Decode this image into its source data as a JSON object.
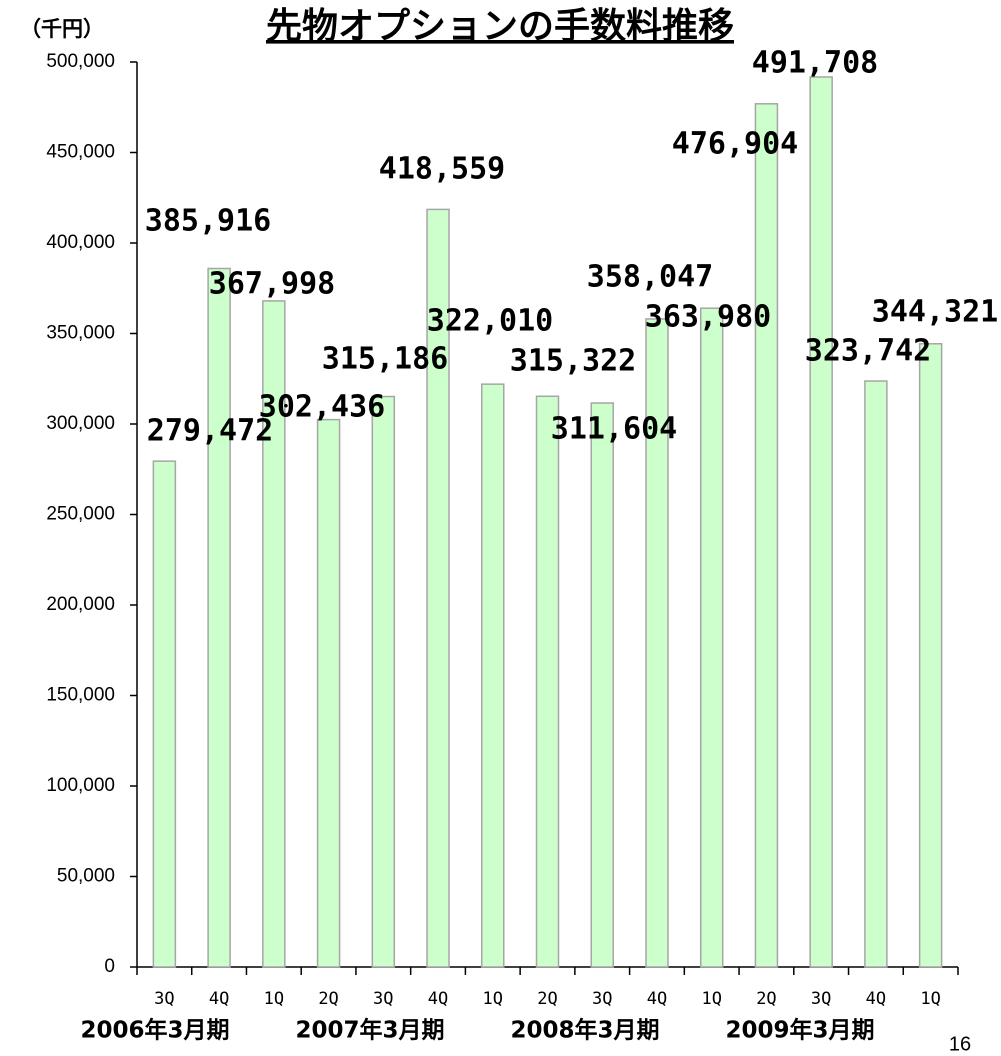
{
  "chart_data": {
    "type": "bar",
    "title": "先物オプションの手数料推移",
    "y_unit": "（千円）",
    "categories": [
      "3Q",
      "4Q",
      "1Q",
      "2Q",
      "3Q",
      "4Q",
      "1Q",
      "2Q",
      "3Q",
      "4Q",
      "1Q",
      "2Q",
      "3Q",
      "4Q",
      "1Q"
    ],
    "groups": [
      "2006年3月期",
      "2007年3月期",
      "2008年3月期",
      "2009年3月期"
    ],
    "values": [
      279472,
      385916,
      367998,
      302436,
      315186,
      418559,
      322010,
      315322,
      311604,
      358047,
      363980,
      476904,
      491708,
      323742,
      344321
    ],
    "value_labels": [
      "279,472",
      "385,916",
      "367,998",
      "302,436",
      "315,186",
      "418,559",
      "322,010",
      "315,322",
      "311,604",
      "358,047",
      "363,980",
      "476,904",
      "491,708",
      "323,742",
      "344,321"
    ],
    "color": "#ccffcc",
    "edge_color": "#a6a6a6",
    "ylim": [
      0,
      500000
    ],
    "yticks": [
      0,
      {
        "value": 50000,
        "label": "50,000"
      },
      {
        "value": 100000,
        "label": "100,000"
      },
      {
        "value": 150000,
        "label": "150,000"
      },
      {
        "value": 200000,
        "label": "200,000"
      },
      {
        "value": 250000,
        "label": "250,000"
      },
      {
        "value": 300000,
        "label": "300,000"
      },
      {
        "value": 350000,
        "label": "350,000"
      },
      {
        "value": 400000,
        "label": "400,000"
      },
      {
        "value": 450000,
        "label": "450,000"
      },
      {
        "value": 500000,
        "label": "500,000"
      }
    ],
    "page_number": "16"
  }
}
